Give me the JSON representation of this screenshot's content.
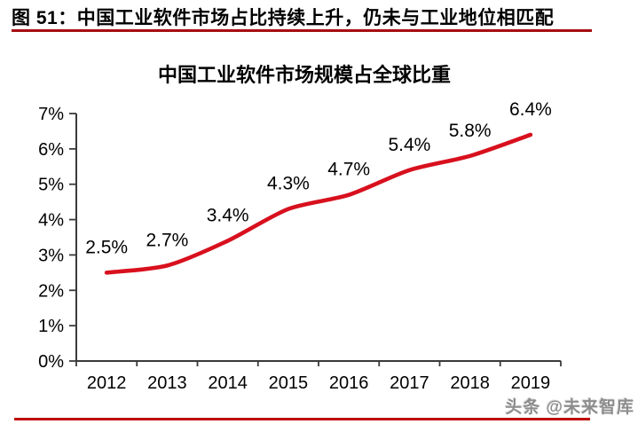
{
  "header": {
    "label": "图 51：中国工业软件市场占比持续上升，仍未与工业地位相匹配"
  },
  "watermark": {
    "label": "头条 @未来智库"
  },
  "colors": {
    "line": "#d8101e",
    "axis": "#3a3a3a",
    "text": "#000000",
    "header_rule": "#a60d10",
    "bottom_rule": "#bf0606",
    "watermark_text": "#8d8d8d"
  },
  "chart_data": {
    "type": "line",
    "title": "中国工业软件市场规模占全球比重",
    "categories": [
      "2012",
      "2013",
      "2014",
      "2015",
      "2016",
      "2017",
      "2018",
      "2019"
    ],
    "series": [
      {
        "name": "中国工业软件市场规模占全球比重",
        "values": [
          2.5,
          2.7,
          3.4,
          4.3,
          4.7,
          5.4,
          5.8,
          6.4
        ]
      }
    ],
    "data_labels": [
      "2.5%",
      "2.7%",
      "3.4%",
      "4.3%",
      "4.7%",
      "5.4%",
      "5.8%",
      "6.4%"
    ],
    "y_tick_labels": [
      "0%",
      "1%",
      "2%",
      "3%",
      "4%",
      "5%",
      "6%",
      "7%"
    ],
    "ylim": [
      0,
      7
    ],
    "y_tick_step": 1,
    "xlabel": "",
    "ylabel": "",
    "grid": "off",
    "legend": "none",
    "smoothed_line": true,
    "markers": "none"
  }
}
